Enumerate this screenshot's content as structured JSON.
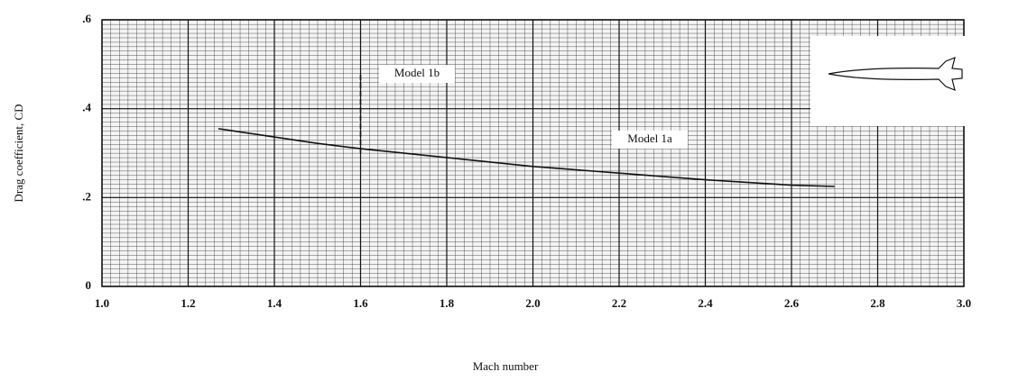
{
  "chart_data": {
    "type": "line",
    "xlabel": "Mach number",
    "ylabel": "Drag coefficient, CD",
    "series": [
      {
        "name": "Model 1a",
        "color": "#111111",
        "dash": false,
        "x": [
          1.27,
          1.5,
          1.6,
          1.8,
          2.0,
          2.2,
          2.4,
          2.6,
          2.7
        ],
        "values": [
          0.355,
          0.322,
          0.31,
          0.29,
          0.27,
          0.255,
          0.24,
          0.228,
          0.225
        ]
      },
      {
        "name": "Model 1b",
        "color": "#111111",
        "dash": true,
        "x": [
          1.6,
          1.6
        ],
        "values": [
          0.3,
          0.48
        ]
      }
    ],
    "xlim": [
      1.0,
      3.0
    ],
    "xticks": [
      {
        "value": 1.0,
        "label": "1.0"
      },
      1.2,
      1.4,
      1.6,
      1.8,
      {
        "value": 2.0,
        "label": "2.0"
      },
      2.2,
      2.4,
      2.6,
      2.8,
      {
        "value": 3.0,
        "label": "3.0"
      }
    ],
    "ylim": [
      0,
      0.6
    ],
    "yticks": [
      0,
      {
        "value": 0.2,
        "label": ".2"
      },
      {
        "value": 0.4,
        "label": ".4"
      },
      {
        "value": 0.6,
        "label": ".6"
      }
    ],
    "grid": true
  }
}
